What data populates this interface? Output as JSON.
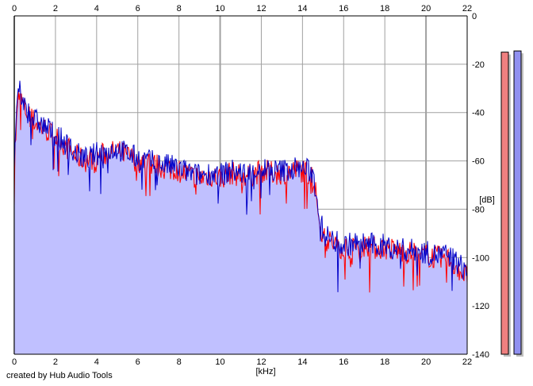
{
  "footer": "created by Hub Audio Tools",
  "colors": {
    "background": "#ffffff",
    "fill": "#c0c0ff",
    "channel_left": "#ff0000",
    "channel_right": "#0000c8",
    "grid": "#a0a0a0",
    "meter_left": "#f08080",
    "meter_right": "#9090f0"
  },
  "chart_data": {
    "type": "line",
    "xlabel": "[kHz]",
    "ylabel": "[dB]",
    "xlim": [
      0,
      22
    ],
    "ylim": [
      -140,
      0
    ],
    "x_ticks": [
      0,
      2,
      4,
      6,
      8,
      10,
      12,
      14,
      16,
      18,
      20,
      22
    ],
    "y_ticks": [
      0,
      -20,
      -40,
      -60,
      -80,
      -100,
      -120,
      -140
    ],
    "grid": true,
    "series": [
      {
        "color": "#ff0000",
        "x": [
          0,
          0.2,
          0.4,
          0.6,
          1,
          1.5,
          2,
          2.5,
          3,
          3.5,
          4,
          4.5,
          5,
          5.5,
          6,
          6.5,
          7,
          7.5,
          8,
          8.5,
          9,
          9.5,
          10,
          10.5,
          11,
          11.5,
          12,
          12.5,
          13,
          13.5,
          14,
          14.5,
          14.8,
          15,
          15.5,
          16,
          16.5,
          17,
          17.5,
          18,
          18.5,
          19,
          19.5,
          20,
          20.5,
          21,
          21.5,
          22
        ],
        "values": [
          -60,
          -33,
          -36,
          -40,
          -44,
          -47,
          -50,
          -54,
          -58,
          -60,
          -58,
          -57,
          -56,
          -58,
          -60,
          -61,
          -62,
          -63,
          -64,
          -66,
          -67,
          -66,
          -67,
          -65,
          -66,
          -66,
          -64,
          -65,
          -65,
          -64,
          -64,
          -66,
          -82,
          -92,
          -94,
          -96,
          -95,
          -95,
          -96,
          -96,
          -97,
          -98,
          -98,
          -99,
          -100,
          -100,
          -104,
          -108
        ]
      },
      {
        "color": "#0000c8",
        "x": [
          0,
          0.2,
          0.4,
          0.6,
          1,
          1.5,
          2,
          2.5,
          3,
          3.5,
          4,
          4.5,
          5,
          5.5,
          6,
          6.5,
          7,
          7.5,
          8,
          8.5,
          9,
          9.5,
          10,
          10.5,
          11,
          11.5,
          12,
          12.5,
          13,
          13.5,
          14,
          14.5,
          14.8,
          15,
          15.5,
          16,
          16.5,
          17,
          17.5,
          18,
          18.5,
          19,
          19.5,
          20,
          20.5,
          21,
          21.5,
          22
        ],
        "values": [
          -60,
          -30,
          -35,
          -39,
          -43,
          -46,
          -49,
          -53,
          -57,
          -59,
          -57,
          -56,
          -55,
          -57,
          -59,
          -60,
          -61,
          -62,
          -63,
          -65,
          -66,
          -65,
          -66,
          -64,
          -65,
          -65,
          -63,
          -64,
          -64,
          -63,
          -63,
          -65,
          -80,
          -90,
          -93,
          -95,
          -94,
          -94,
          -95,
          -95,
          -96,
          -97,
          -97,
          -98,
          -99,
          -99,
          -102,
          -106
        ]
      }
    ],
    "meters": [
      {
        "level_db": -15,
        "color": "#f08080"
      },
      {
        "level_db": -14.5,
        "color": "#9090f0"
      }
    ]
  }
}
